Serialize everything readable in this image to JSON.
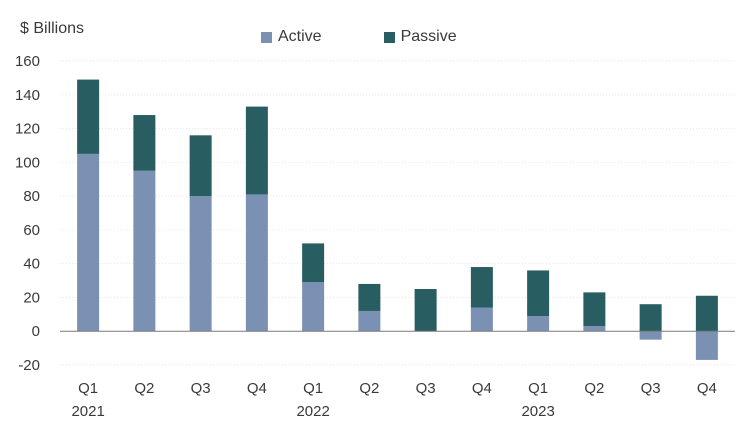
{
  "chart_data": {
    "type": "bar",
    "stacked": true,
    "unit_label": "$ Billions",
    "categories": [
      "Q1",
      "Q2",
      "Q3",
      "Q4",
      "Q1",
      "Q2",
      "Q3",
      "Q4",
      "Q1",
      "Q2",
      "Q3",
      "Q4"
    ],
    "year_labels": [
      {
        "category_index": 0,
        "label": "2021"
      },
      {
        "category_index": 4,
        "label": "2022"
      },
      {
        "category_index": 8,
        "label": "2023"
      }
    ],
    "series": [
      {
        "name": "Active",
        "color": "#7b91b3",
        "values": [
          105,
          95,
          80,
          81,
          29,
          12,
          0,
          14,
          9,
          3,
          -5,
          -17
        ]
      },
      {
        "name": "Passive",
        "color": "#285e61",
        "values": [
          44,
          33,
          36,
          52,
          23,
          16,
          25,
          24,
          27,
          20,
          16,
          21
        ]
      }
    ],
    "ylim": [
      -20,
      160
    ],
    "yticks": [
      -20,
      0,
      20,
      40,
      60,
      80,
      100,
      120,
      140,
      160
    ],
    "grid": true,
    "legend_position": "top"
  }
}
